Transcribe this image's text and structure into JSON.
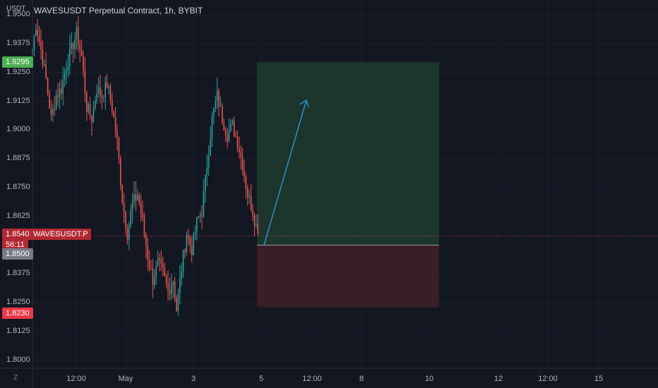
{
  "header": {
    "title": "WAVESUSDT Perpetual Contract, 1h, BYBIT",
    "currency": "USDT"
  },
  "price_axis": {
    "labels": [
      "1.9500",
      "1.9375",
      "1.9250",
      "1.9125",
      "1.9000",
      "1.8875",
      "1.8750",
      "1.8625",
      "1.8375",
      "1.8250",
      "1.8125",
      "1.8000"
    ]
  },
  "time_axis": {
    "labels": [
      "12:00",
      "May",
      "3",
      "5",
      "12:00",
      "8",
      "10",
      "12",
      "12:00",
      "15"
    ]
  },
  "tags": {
    "target_price": "1.9295",
    "last_price": "1.8540",
    "symbol": "WAVESUSDT.P",
    "countdown": "56:11",
    "entry_price": "1.8500",
    "stop_price": "1.8230"
  },
  "controls": {
    "zoom_label": "Z"
  },
  "colors": {
    "background": "#131722",
    "up": "#26a69a",
    "down": "#ef5350",
    "profit_zone": "#1e3a2f",
    "loss_zone": "#3d1f27",
    "arrow": "#2f8fc7",
    "target_tag": "#4caf50",
    "last_tag": "#b22833",
    "entry_tag": "#787b86",
    "stop_tag": "#f23645"
  },
  "chart_data": {
    "type": "candlestick",
    "symbol": "WAVESUSDT",
    "interval": "1h",
    "exchange": "BYBIT",
    "ylim": [
      1.7965,
      1.9565
    ],
    "price_ticks": [
      1.95,
      1.9375,
      1.925,
      1.9125,
      1.9,
      1.8875,
      1.875,
      1.8625,
      1.8375,
      1.825,
      1.8125,
      1.8
    ],
    "last_price": 1.854,
    "position": {
      "type": "long",
      "entry": 1.85,
      "target": 1.9295,
      "stop": 1.823
    },
    "candle_path": [
      [
        0,
        1.935
      ],
      [
        2,
        1.946
      ],
      [
        5,
        1.935
      ],
      [
        8,
        1.922
      ],
      [
        11,
        1.905
      ],
      [
        14,
        1.915
      ],
      [
        17,
        1.918
      ],
      [
        20,
        1.928
      ],
      [
        23,
        1.935
      ],
      [
        26,
        1.942
      ],
      [
        29,
        1.932
      ],
      [
        32,
        1.91
      ],
      [
        35,
        1.905
      ],
      [
        38,
        1.918
      ],
      [
        41,
        1.915
      ],
      [
        44,
        1.92
      ],
      [
        47,
        1.91
      ],
      [
        50,
        1.895
      ],
      [
        53,
        1.87
      ],
      [
        56,
        1.855
      ],
      [
        59,
        1.868
      ],
      [
        62,
        1.872
      ],
      [
        65,
        1.86
      ],
      [
        68,
        1.845
      ],
      [
        71,
        1.835
      ],
      [
        74,
        1.842
      ],
      [
        77,
        1.838
      ],
      [
        80,
        1.83
      ],
      [
        83,
        1.835
      ],
      [
        85,
        1.822
      ],
      [
        88,
        1.84
      ],
      [
        91,
        1.855
      ],
      [
        94,
        1.848
      ],
      [
        97,
        1.86
      ],
      [
        100,
        1.865
      ],
      [
        103,
        1.885
      ],
      [
        106,
        1.905
      ],
      [
        109,
        1.915
      ],
      [
        112,
        1.905
      ],
      [
        115,
        1.898
      ],
      [
        118,
        1.902
      ],
      [
        121,
        1.895
      ],
      [
        124,
        1.885
      ],
      [
        127,
        1.872
      ],
      [
        130,
        1.865
      ],
      [
        133,
        1.855
      ]
    ]
  }
}
